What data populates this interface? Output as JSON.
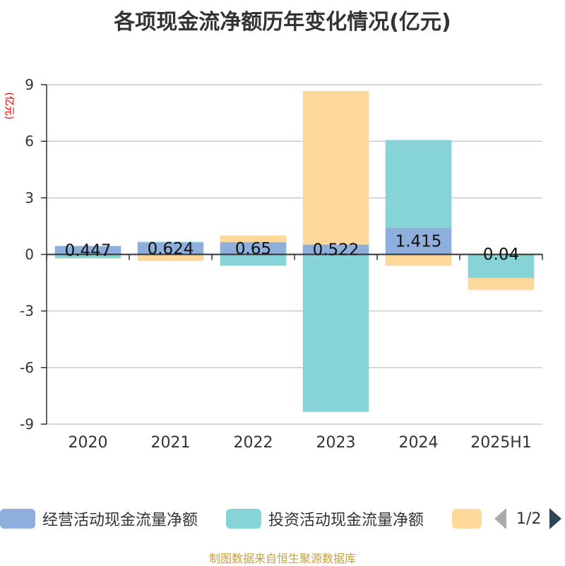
{
  "title": "各项现金流净额历年变化情况(亿元)",
  "footer": "制图数据来自恒生聚源数据库",
  "colors": {
    "operating": "#8eaedc",
    "investing": "#86d4d8",
    "financing": "#fdd89a",
    "axis": "#333333",
    "grid": "#cccccc",
    "ylabel": "#e00000",
    "footer": "#c8a040"
  },
  "legend": {
    "items": [
      "经营活动现金流量净额",
      "投资活动现金流量净额",
      ""
    ],
    "pager": "1/2"
  },
  "chart_data": {
    "type": "bar",
    "stacked": true,
    "title": "各项现金流净额历年变化情况(亿元)",
    "ylabel": "(亿元)",
    "xlabel": "",
    "categories": [
      "2020",
      "2021",
      "2022",
      "2023",
      "2024",
      "2025H1"
    ],
    "ylim": [
      -9,
      9
    ],
    "yticks": [
      "9",
      "6",
      "3",
      "0",
      "-3",
      "-6",
      "-9"
    ],
    "grid": true,
    "legend_position": "bottom",
    "series": [
      {
        "name": "经营活动现金流量净额",
        "values": [
          0.447,
          0.624,
          0.65,
          0.522,
          1.415,
          0.04
        ]
      },
      {
        "name": "投资活动现金流量净额",
        "values": [
          -0.2,
          0.05,
          -0.6,
          -8.35,
          4.65,
          -1.25
        ]
      },
      {
        "values": [
          -0.02,
          -0.35,
          0.35,
          8.15,
          -0.6,
          -0.63
        ]
      }
    ],
    "data_labels": [
      "0.447",
      "0.624",
      "0.65",
      "0.522",
      "1.415",
      "0.04"
    ]
  }
}
